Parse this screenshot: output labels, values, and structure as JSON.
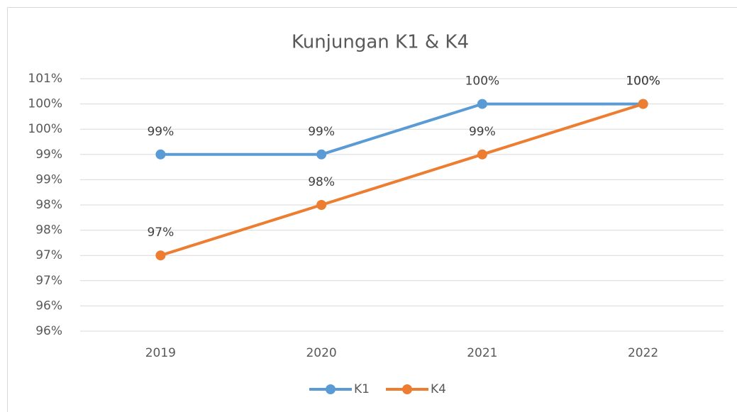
{
  "chart_data": {
    "type": "line",
    "title": "Kunjungan K1 & K4",
    "categories": [
      "2019",
      "2020",
      "2021",
      "2022"
    ],
    "series": [
      {
        "name": "K1",
        "color": "#5b9bd5",
        "values": [
          99,
          99,
          100,
          100
        ],
        "value_labels": [
          "99%",
          "99%",
          "100%",
          "100%"
        ]
      },
      {
        "name": "K4",
        "color": "#ed7d31",
        "values": [
          97,
          98,
          99,
          100
        ],
        "value_labels": [
          "97%",
          "98%",
          "99%",
          "100%"
        ]
      }
    ],
    "ylim": [
      95.5,
      100.5
    ],
    "yticks": [
      {
        "value": 95.5,
        "label": "96%"
      },
      {
        "value": 96,
        "label": "96%"
      },
      {
        "value": 96.5,
        "label": "97%"
      },
      {
        "value": 97,
        "label": "97%"
      },
      {
        "value": 97.5,
        "label": "98%"
      },
      {
        "value": 98,
        "label": "98%"
      },
      {
        "value": 98.5,
        "label": "99%"
      },
      {
        "value": 99,
        "label": "99%"
      },
      {
        "value": 99.5,
        "label": "100%"
      },
      {
        "value": 100,
        "label": "100%"
      },
      {
        "value": 100.5,
        "label": "101%"
      }
    ],
    "grid": true,
    "legend": "bottom"
  }
}
